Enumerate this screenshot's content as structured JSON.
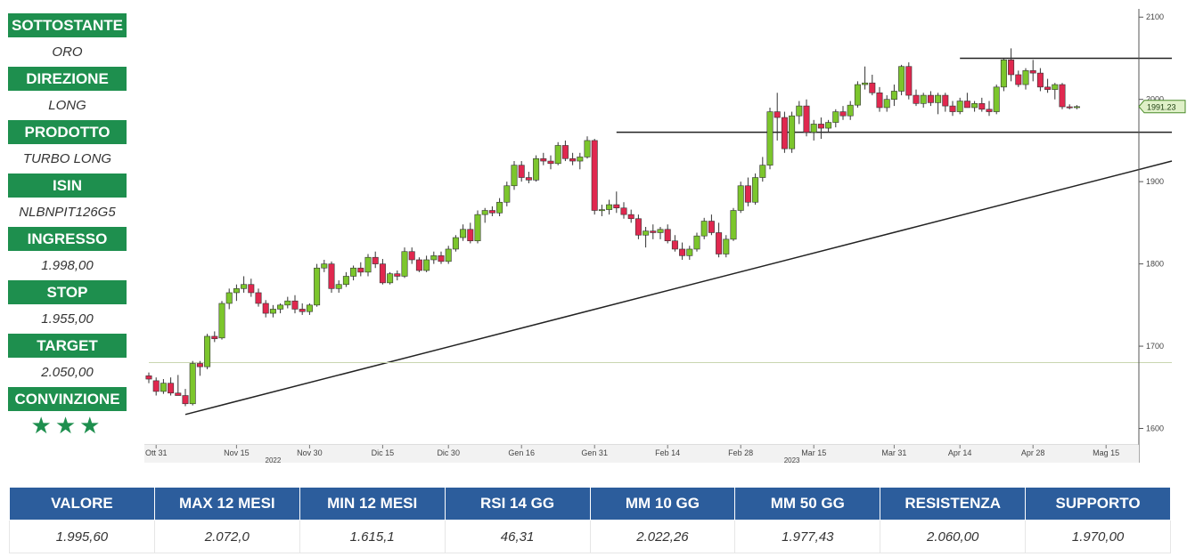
{
  "sidebar": {
    "items": [
      {
        "label": "SOTTOSTANTE",
        "value": "ORO"
      },
      {
        "label": "DIREZIONE",
        "value": "LONG"
      },
      {
        "label": "PRODOTTO",
        "value": "TURBO LONG"
      },
      {
        "label": "ISIN",
        "value": "NLBNPIT126G5"
      },
      {
        "label": "INGRESSO",
        "value": "1.998,00"
      },
      {
        "label": "STOP",
        "value": "1.955,00"
      },
      {
        "label": "TARGET",
        "value": "2.050,00"
      }
    ],
    "conviction_label": "CONVINZIONE",
    "conviction_stars": "★★★"
  },
  "stats": {
    "headers": [
      "VALORE",
      "MAX 12 MESI",
      "MIN 12 MESI",
      "RSI 14 GG",
      "MM 10 GG",
      "MM 50 GG",
      "RESISTENZA",
      "SUPPORTO"
    ],
    "values": [
      "1.995,60",
      "2.072,0",
      "1.615,1",
      "46,31",
      "2.022,26",
      "1.977,43",
      "2.060,00",
      "1.970,00"
    ]
  },
  "colors": {
    "up": "#7cc62c",
    "down": "#e0284f",
    "header_green": "#1e8f4e",
    "header_blue": "#2c5d9c"
  },
  "chart_data": {
    "type": "candlestick",
    "ylim": [
      1580,
      2110
    ],
    "y_ticks": [
      1600,
      1700,
      1800,
      1900,
      2000,
      2100
    ],
    "x_ticks": [
      "Ott 31",
      "Nov 15",
      "Nov 30",
      "Dic 15",
      "Dic 30",
      "Gen 16",
      "Gen 31",
      "Feb 14",
      "Feb 28",
      "Mar 15",
      "Mar 31",
      "Apr 14",
      "Apr 28",
      "Mag 15"
    ],
    "x_tick_index": [
      1,
      12,
      22,
      32,
      41,
      51,
      61,
      71,
      81,
      91,
      102,
      111,
      121,
      131
    ],
    "years": [
      {
        "label": "2022",
        "index": 17
      },
      {
        "label": "2023",
        "index": 88
      }
    ],
    "last_price_label": "1991.23",
    "last_price": 1991.23,
    "candles": [
      [
        1664,
        1668,
        1655,
        1660
      ],
      [
        1658,
        1662,
        1640,
        1645
      ],
      [
        1645,
        1660,
        1642,
        1655
      ],
      [
        1655,
        1662,
        1640,
        1643
      ],
      [
        1643,
        1665,
        1640,
        1640
      ],
      [
        1640,
        1648,
        1627,
        1630
      ],
      [
        1630,
        1682,
        1628,
        1679
      ],
      [
        1679,
        1682,
        1664,
        1675
      ],
      [
        1675,
        1715,
        1672,
        1712
      ],
      [
        1712,
        1718,
        1705,
        1709
      ],
      [
        1710,
        1755,
        1708,
        1752
      ],
      [
        1752,
        1770,
        1745,
        1765
      ],
      [
        1765,
        1775,
        1755,
        1770
      ],
      [
        1770,
        1785,
        1765,
        1775
      ],
      [
        1775,
        1782,
        1760,
        1765
      ],
      [
        1765,
        1770,
        1748,
        1752
      ],
      [
        1752,
        1756,
        1735,
        1740
      ],
      [
        1740,
        1750,
        1735,
        1745
      ],
      [
        1745,
        1752,
        1740,
        1750
      ],
      [
        1750,
        1760,
        1746,
        1755
      ],
      [
        1755,
        1762,
        1740,
        1745
      ],
      [
        1745,
        1752,
        1738,
        1742
      ],
      [
        1742,
        1752,
        1738,
        1750
      ],
      [
        1750,
        1800,
        1748,
        1795
      ],
      [
        1795,
        1805,
        1790,
        1800
      ],
      [
        1800,
        1803,
        1765,
        1770
      ],
      [
        1770,
        1780,
        1765,
        1775
      ],
      [
        1775,
        1790,
        1772,
        1785
      ],
      [
        1785,
        1798,
        1780,
        1795
      ],
      [
        1795,
        1802,
        1785,
        1790
      ],
      [
        1790,
        1812,
        1785,
        1808
      ],
      [
        1808,
        1815,
        1795,
        1800
      ],
      [
        1800,
        1806,
        1775,
        1777
      ],
      [
        1777,
        1790,
        1775,
        1788
      ],
      [
        1788,
        1792,
        1780,
        1785
      ],
      [
        1785,
        1820,
        1783,
        1815
      ],
      [
        1815,
        1820,
        1800,
        1805
      ],
      [
        1805,
        1808,
        1790,
        1792
      ],
      [
        1792,
        1810,
        1790,
        1805
      ],
      [
        1805,
        1815,
        1800,
        1810
      ],
      [
        1810,
        1815,
        1800,
        1803
      ],
      [
        1803,
        1822,
        1800,
        1818
      ],
      [
        1818,
        1835,
        1815,
        1832
      ],
      [
        1832,
        1848,
        1828,
        1842
      ],
      [
        1842,
        1850,
        1825,
        1828
      ],
      [
        1828,
        1865,
        1825,
        1860
      ],
      [
        1860,
        1868,
        1850,
        1865
      ],
      [
        1865,
        1870,
        1858,
        1862
      ],
      [
        1862,
        1880,
        1858,
        1875
      ],
      [
        1875,
        1900,
        1870,
        1895
      ],
      [
        1895,
        1925,
        1890,
        1920
      ],
      [
        1920,
        1925,
        1900,
        1905
      ],
      [
        1905,
        1912,
        1898,
        1902
      ],
      [
        1902,
        1932,
        1900,
        1928
      ],
      [
        1928,
        1935,
        1920,
        1925
      ],
      [
        1925,
        1932,
        1915,
        1922
      ],
      [
        1922,
        1948,
        1920,
        1944
      ],
      [
        1944,
        1950,
        1925,
        1928
      ],
      [
        1928,
        1935,
        1920,
        1925
      ],
      [
        1925,
        1935,
        1915,
        1930
      ],
      [
        1930,
        1955,
        1928,
        1950
      ],
      [
        1950,
        1952,
        1860,
        1865
      ],
      [
        1865,
        1872,
        1858,
        1866
      ],
      [
        1866,
        1878,
        1860,
        1872
      ],
      [
        1872,
        1888,
        1862,
        1868
      ],
      [
        1868,
        1875,
        1855,
        1860
      ],
      [
        1860,
        1866,
        1850,
        1855
      ],
      [
        1855,
        1860,
        1830,
        1835
      ],
      [
        1835,
        1845,
        1820,
        1840
      ],
      [
        1840,
        1848,
        1830,
        1838
      ],
      [
        1838,
        1845,
        1830,
        1842
      ],
      [
        1842,
        1848,
        1825,
        1828
      ],
      [
        1828,
        1835,
        1815,
        1818
      ],
      [
        1818,
        1826,
        1805,
        1810
      ],
      [
        1810,
        1822,
        1805,
        1818
      ],
      [
        1818,
        1838,
        1815,
        1834
      ],
      [
        1834,
        1856,
        1830,
        1852
      ],
      [
        1852,
        1860,
        1835,
        1838
      ],
      [
        1838,
        1850,
        1808,
        1812
      ],
      [
        1812,
        1835,
        1808,
        1830
      ],
      [
        1830,
        1868,
        1828,
        1865
      ],
      [
        1865,
        1900,
        1862,
        1895
      ],
      [
        1895,
        1905,
        1870,
        1875
      ],
      [
        1875,
        1910,
        1872,
        1905
      ],
      [
        1905,
        1930,
        1900,
        1920
      ],
      [
        1920,
        1990,
        1915,
        1985
      ],
      [
        1985,
        2008,
        1950,
        1978
      ],
      [
        1978,
        1985,
        1935,
        1940
      ],
      [
        1940,
        1985,
        1935,
        1980
      ],
      [
        1980,
        1998,
        1970,
        1992
      ],
      [
        1992,
        2000,
        1955,
        1960
      ],
      [
        1960,
        1975,
        1950,
        1970
      ],
      [
        1970,
        1978,
        1952,
        1965
      ],
      [
        1965,
        1975,
        1960,
        1972
      ],
      [
        1972,
        1988,
        1966,
        1985
      ],
      [
        1985,
        1992,
        1975,
        1980
      ],
      [
        1980,
        1998,
        1975,
        1993
      ],
      [
        1993,
        2022,
        1990,
        2018
      ],
      [
        2018,
        2040,
        2012,
        2020
      ],
      [
        2020,
        2030,
        2005,
        2008
      ],
      [
        2008,
        2015,
        1985,
        1990
      ],
      [
        1990,
        2005,
        1985,
        2000
      ],
      [
        2000,
        2018,
        1992,
        2010
      ],
      [
        2010,
        2042,
        2005,
        2040
      ],
      [
        2040,
        2045,
        2000,
        2005
      ],
      [
        2005,
        2012,
        1992,
        1995
      ],
      [
        1995,
        2008,
        1990,
        2005
      ],
      [
        2005,
        2010,
        1992,
        1996
      ],
      [
        1996,
        2008,
        1982,
        2005
      ],
      [
        2005,
        2008,
        1985,
        1992
      ],
      [
        1992,
        1998,
        1980,
        1985
      ],
      [
        1985,
        2002,
        1982,
        1998
      ],
      [
        1998,
        2008,
        1990,
        1990
      ],
      [
        1990,
        1998,
        1985,
        1995
      ],
      [
        1995,
        2002,
        1985,
        1988
      ],
      [
        1988,
        1998,
        1980,
        1985
      ],
      [
        1985,
        2018,
        1982,
        2015
      ],
      [
        2015,
        2050,
        2010,
        2048
      ],
      [
        2048,
        2062,
        2022,
        2030
      ],
      [
        2030,
        2035,
        2015,
        2018
      ],
      [
        2018,
        2038,
        2012,
        2035
      ],
      [
        2035,
        2048,
        2022,
        2032
      ],
      [
        2032,
        2038,
        2010,
        2015
      ],
      [
        2015,
        2025,
        2008,
        2012
      ],
      [
        2012,
        2020,
        2000,
        2018
      ],
      [
        2018,
        2020,
        1988,
        1991
      ],
      [
        1991,
        1994,
        1988,
        1990
      ],
      [
        1990,
        1993,
        1988,
        1991.23
      ]
    ],
    "lines": [
      {
        "type": "trendline",
        "from": [
          5,
          1617
        ],
        "to": [
          140,
          1925
        ]
      },
      {
        "type": "horizontal",
        "y": 1960,
        "from": 64,
        "to": 140
      },
      {
        "type": "horizontal",
        "y": 2050,
        "from": 111,
        "to": 140
      },
      {
        "type": "horizontal",
        "y": 1680,
        "from": 0,
        "to": 140,
        "style": "faint"
      }
    ]
  }
}
